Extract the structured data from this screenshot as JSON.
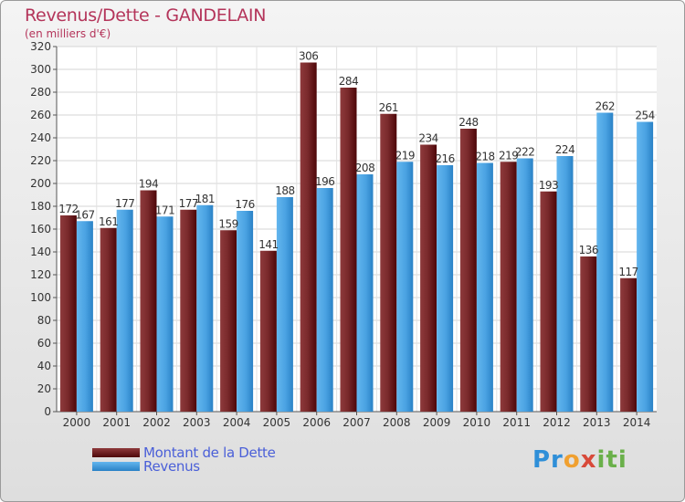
{
  "title": "Revenus/Dette - GANDELAIN",
  "subtitle": "(en milliers d'€)",
  "logo": {
    "p": "Pr",
    "o": "o",
    "x": "x",
    "iti": "iti"
  },
  "colors": {
    "dette_dark": "#5a0a0c",
    "dette_light": "#8e3a3c",
    "revenus_dark": "#2678b8",
    "revenus_light": "#5cb0ea"
  },
  "chart_data": {
    "type": "bar",
    "categories": [
      "2000",
      "2001",
      "2002",
      "2003",
      "2004",
      "2005",
      "2006",
      "2007",
      "2008",
      "2009",
      "2010",
      "2011",
      "2012",
      "2013",
      "2014"
    ],
    "series": [
      {
        "name": "Montant de la Dette",
        "values": [
          172,
          161,
          194,
          177,
          159,
          141,
          306,
          284,
          261,
          234,
          248,
          219,
          193,
          136,
          117
        ]
      },
      {
        "name": "Revenus",
        "values": [
          167,
          177,
          171,
          181,
          176,
          188,
          196,
          208,
          219,
          216,
          218,
          222,
          224,
          262,
          254
        ]
      }
    ],
    "ylim": [
      0,
      320
    ],
    "yticks": [
      0,
      20,
      40,
      60,
      80,
      100,
      120,
      140,
      160,
      180,
      200,
      220,
      240,
      260,
      280,
      300,
      320
    ],
    "grid": true,
    "legend_position": "bottom-left"
  }
}
